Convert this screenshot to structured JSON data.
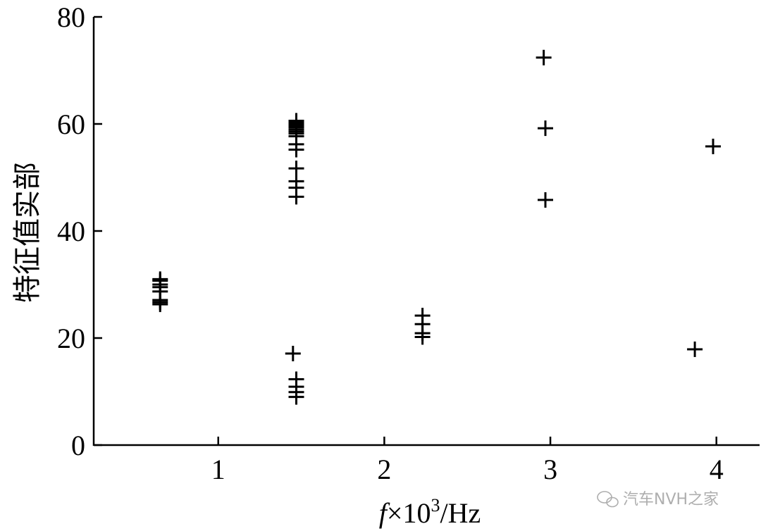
{
  "chart_data": {
    "type": "scatter",
    "title": "",
    "xlabel": {
      "prefix": "f",
      "mid": "×10",
      "sup": "3",
      "suffix": "/Hz"
    },
    "ylabel": "特征值实部",
    "xlim": [
      0.25,
      4.26
    ],
    "ylim": [
      0,
      80
    ],
    "xticks": [
      1,
      2,
      3,
      4
    ],
    "yticks": [
      0,
      20,
      40,
      60,
      80
    ],
    "grid": false,
    "marker": "plus",
    "color": "#000000",
    "points": [
      [
        0.65,
        31.0
      ],
      [
        0.65,
        30.7
      ],
      [
        0.65,
        30.0
      ],
      [
        0.65,
        29.5
      ],
      [
        0.65,
        28.7
      ],
      [
        0.65,
        27.1
      ],
      [
        0.65,
        26.7
      ],
      [
        0.65,
        26.3
      ],
      [
        1.47,
        60.6
      ],
      [
        1.47,
        60.2
      ],
      [
        1.47,
        59.8
      ],
      [
        1.47,
        59.4
      ],
      [
        1.47,
        59.0
      ],
      [
        1.47,
        58.6
      ],
      [
        1.47,
        58.2
      ],
      [
        1.47,
        57.7
      ],
      [
        1.47,
        56.2
      ],
      [
        1.47,
        55.2
      ],
      [
        1.47,
        51.7
      ],
      [
        1.47,
        49.3
      ],
      [
        1.47,
        48.1
      ],
      [
        1.47,
        46.4
      ],
      [
        1.45,
        17.1
      ],
      [
        1.47,
        12.3
      ],
      [
        1.47,
        10.9
      ],
      [
        1.47,
        9.9
      ],
      [
        1.47,
        9.0
      ],
      [
        2.23,
        24.2
      ],
      [
        2.23,
        22.6
      ],
      [
        2.23,
        20.9
      ],
      [
        2.23,
        20.2
      ],
      [
        2.96,
        72.4
      ],
      [
        2.97,
        59.2
      ],
      [
        2.97,
        45.8
      ],
      [
        3.98,
        55.8
      ],
      [
        3.87,
        17.9
      ]
    ]
  },
  "watermark": {
    "text": "汽车NVH之家",
    "icon": "wechat-icon"
  }
}
